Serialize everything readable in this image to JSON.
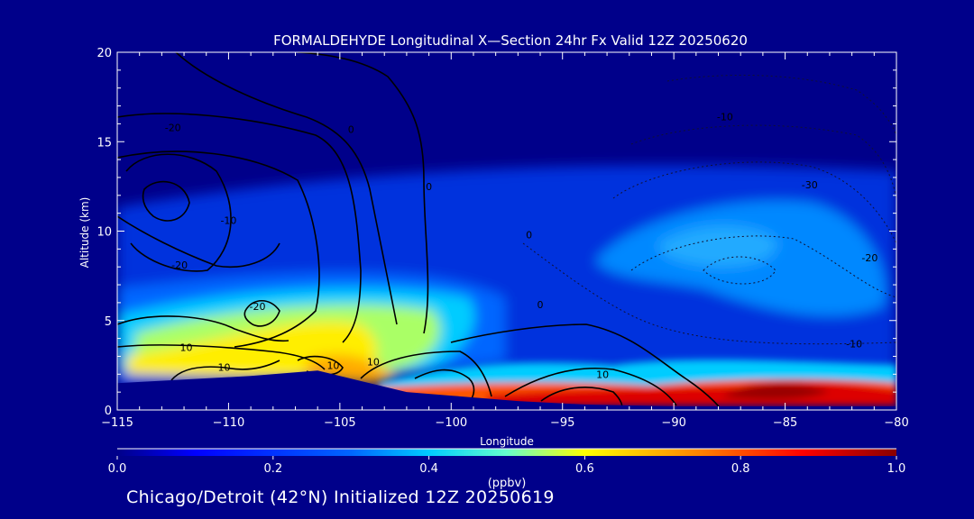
{
  "chart_data": {
    "type": "heatmap",
    "title": "FORMALDEHYDE Longitudinal X—Section 24hr  Fx Valid 12Z 20250620",
    "xlabel": "Longitude",
    "ylabel": "Altitude (km)",
    "xlim": [
      -115,
      -80
    ],
    "ylim": [
      0,
      20
    ],
    "x_ticks": [
      "-115",
      "-110",
      "-105",
      "-100",
      "-95",
      "-90",
      "-85",
      "-80"
    ],
    "y_ticks": [
      "0",
      "5",
      "10",
      "15",
      "20"
    ],
    "colorbar": {
      "label": "(ppbv)",
      "range": [
        0.0,
        1.0
      ],
      "ticks": [
        "0.0",
        "0.2",
        "0.4",
        "0.6",
        "0.8",
        "1.0"
      ],
      "colors": [
        "#00008a",
        "#0000ff",
        "#00aaff",
        "#00ffff",
        "#ffff00",
        "#ff8000",
        "#ff0000",
        "#8b0000"
      ]
    },
    "terrain": [
      {
        "lon": -115,
        "alt": 1.5
      },
      {
        "lon": -112,
        "alt": 1.7
      },
      {
        "lon": -109,
        "alt": 1.9
      },
      {
        "lon": -106,
        "alt": 2.2
      },
      {
        "lon": -104,
        "alt": 1.6
      },
      {
        "lon": -102,
        "alt": 1.0
      },
      {
        "lon": -100,
        "alt": 0.8
      },
      {
        "lon": -97,
        "alt": 0.5
      },
      {
        "lon": -94,
        "alt": 0.3
      },
      {
        "lon": -90,
        "alt": 0.2
      },
      {
        "lon": -85,
        "alt": 0.2
      },
      {
        "lon": -80,
        "alt": 0.2
      }
    ],
    "contour_labels": [
      {
        "text": "0",
        "lon": -101,
        "alt": 12.3
      },
      {
        "text": "0",
        "lon": -104.5,
        "alt": 15.5
      },
      {
        "text": "0",
        "lon": -96.5,
        "alt": 9.6
      },
      {
        "text": "0",
        "lon": -96,
        "alt": 5.7
      },
      {
        "text": "-10",
        "lon": -110,
        "alt": 10.4
      },
      {
        "text": "-20",
        "lon": -112.5,
        "alt": 15.6
      },
      {
        "text": "-20",
        "lon": -112.2,
        "alt": 7.9
      },
      {
        "text": "-20",
        "lon": -108.7,
        "alt": 5.6
      },
      {
        "text": "10",
        "lon": -111.9,
        "alt": 3.3
      },
      {
        "text": "10",
        "lon": -110.2,
        "alt": 2.2
      },
      {
        "text": "10",
        "lon": -105.3,
        "alt": 2.3
      },
      {
        "text": "10",
        "lon": -103.5,
        "alt": 2.5
      },
      {
        "text": "10",
        "lon": -93.2,
        "alt": 1.8
      },
      {
        "text": "-10",
        "lon": -87.7,
        "alt": 16.2
      },
      {
        "text": "-30",
        "lon": -83.9,
        "alt": 12.4
      },
      {
        "text": "-20",
        "lon": -81.2,
        "alt": 8.3
      },
      {
        "text": "-10",
        "lon": -81.9,
        "alt": 3.5
      }
    ]
  },
  "footer": "Chicago/Detroit (42°N) Initialized 12Z 20250619",
  "colors": {
    "background": "#00008a",
    "axes": "#ffffff",
    "contour": "#000000"
  }
}
